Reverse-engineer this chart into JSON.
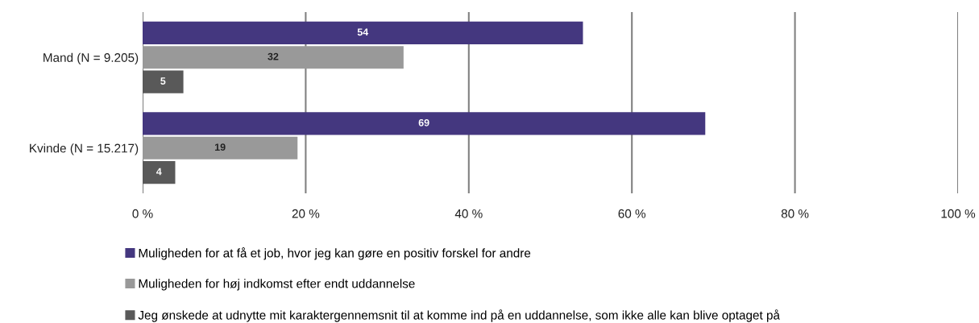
{
  "chart_data": {
    "type": "bar",
    "orientation": "horizontal",
    "categories": [
      "Mand (N = 9.205)",
      "Kvinde (N = 15.217)"
    ],
    "series": [
      {
        "name": "Muligheden for at få et job, hvor jeg kan gøre en positiv forskel for andre",
        "color": "#44377f",
        "values": [
          54,
          69
        ]
      },
      {
        "name": "Muligheden for høj indkomst efter endt uddannelse",
        "color": "#999999",
        "values": [
          32,
          19
        ]
      },
      {
        "name": "Jeg ønskede at udnytte mit karaktergennemsnit til at komme ind på en uddannelse, som ikke alle kan blive optaget på",
        "color": "#595959",
        "values": [
          5,
          4
        ]
      }
    ],
    "xlim": [
      0,
      100
    ],
    "xticks": [
      {
        "value": 0,
        "label": "0 %"
      },
      {
        "value": 20,
        "label": "20 %"
      },
      {
        "value": 40,
        "label": "40 %"
      },
      {
        "value": 60,
        "label": "60 %"
      },
      {
        "value": 80,
        "label": "80 %"
      },
      {
        "value": 100,
        "label": "100 %"
      }
    ],
    "grid": "x",
    "legend": "bottom",
    "data_labels": true
  }
}
